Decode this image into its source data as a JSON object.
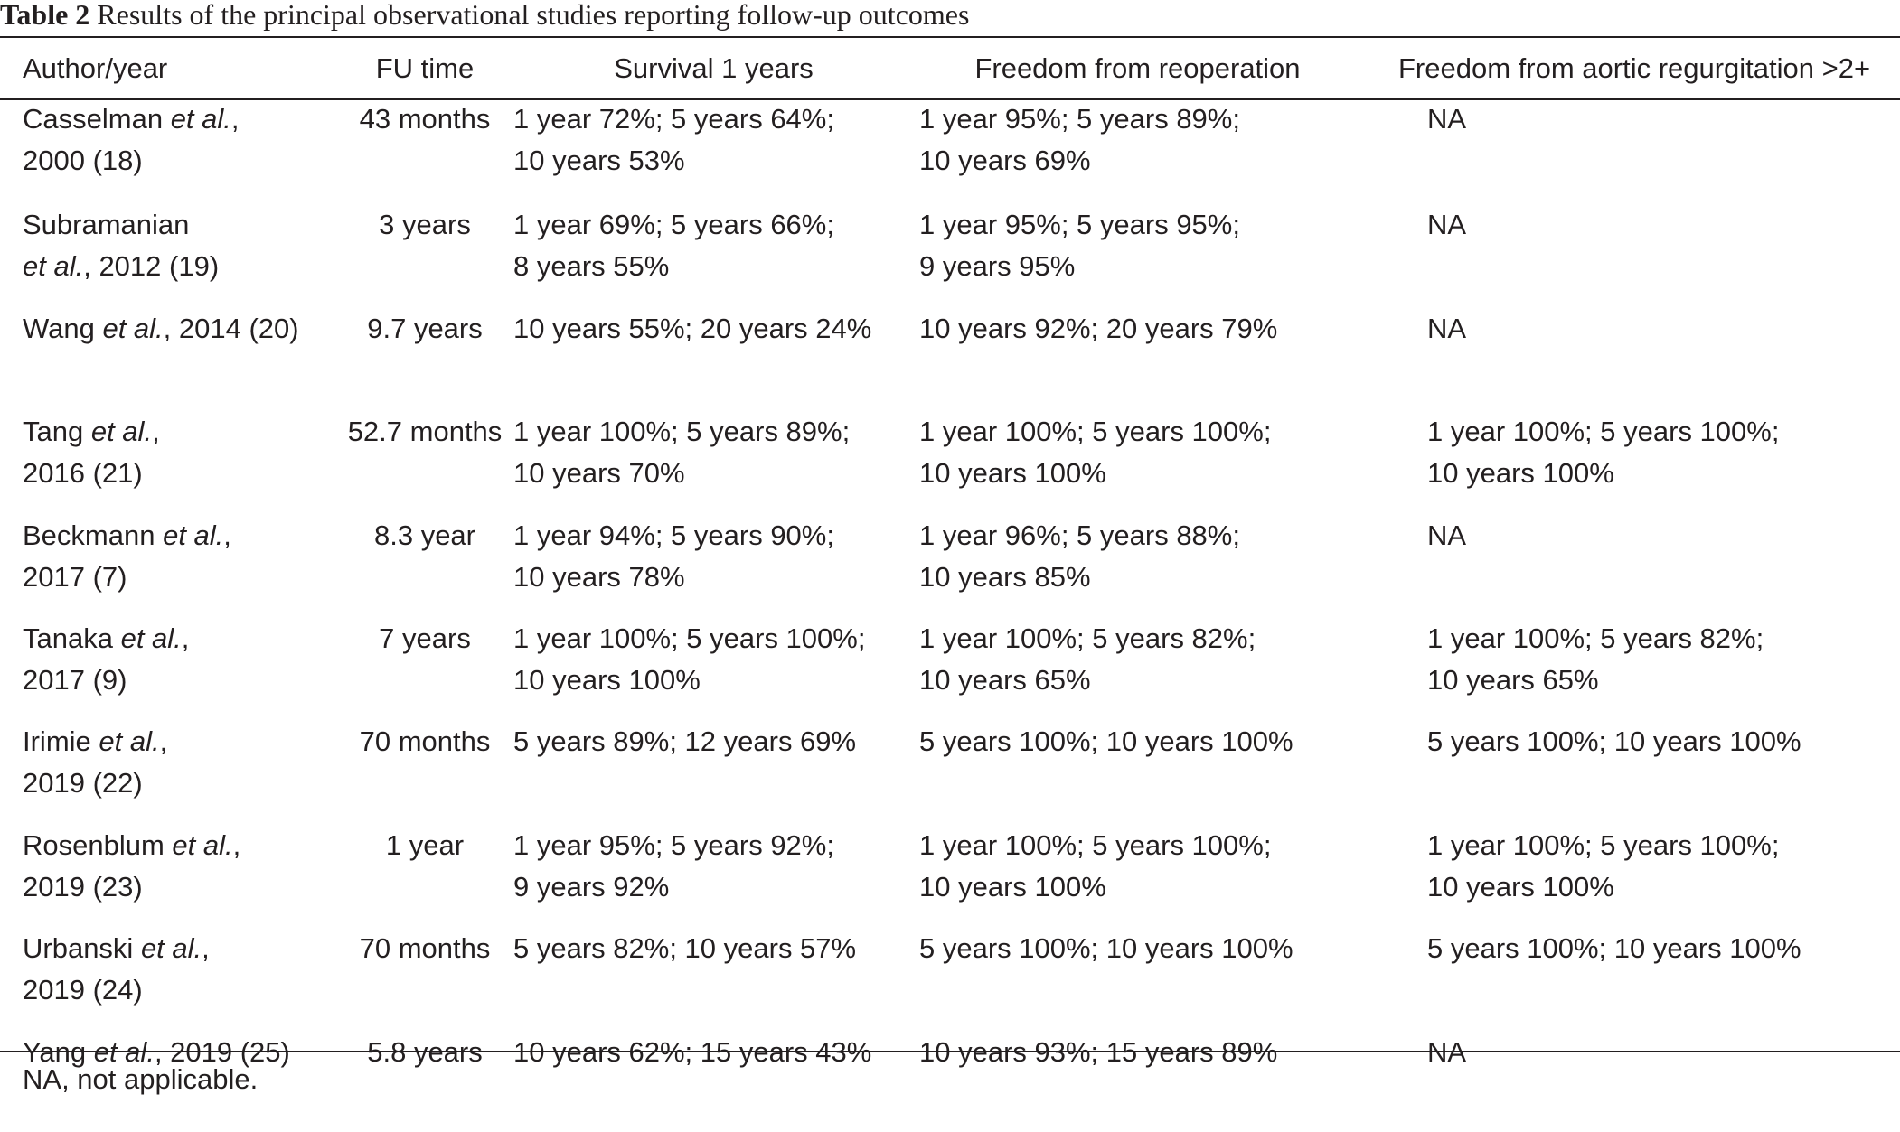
{
  "caption": {
    "label": "Table 2",
    "text": "Results of the principal observational studies reporting follow-up outcomes"
  },
  "table": {
    "headers": [
      "Author/year",
      "FU time",
      "Survival 1 years",
      "Freedom from reoperation",
      "Freedom from aortic regurgitation >2+"
    ],
    "rows": [
      {
        "author": {
          "l1a": "Casselman ",
          "l1i": "et al.",
          "l1b": ",",
          "l2a": "2000 (18)",
          "l2i": "",
          "l2b": ""
        },
        "fu": "43 months",
        "survival": [
          "1 year 72%; 5 years 64%;",
          "10 years 53%"
        ],
        "reoperation": [
          "1 year 95%; 5 years 89%;",
          "10 years 69%"
        ],
        "regurgitation": [
          "NA",
          ""
        ]
      },
      {
        "author": {
          "l1a": "Subramanian",
          "l1i": "",
          "l1b": "",
          "l2a": "",
          "l2i": "et al.",
          "l2b": ", 2012 (19)"
        },
        "fu": "3 years",
        "survival": [
          "1 year 69%; 5 years 66%;",
          "8 years 55%"
        ],
        "reoperation": [
          "1 year 95%; 5 years 95%;",
          "9 years 95%"
        ],
        "regurgitation": [
          "NA",
          ""
        ]
      },
      {
        "author": {
          "l1a": "Wang ",
          "l1i": "et al.",
          "l1b": ", 2014 (20)",
          "l2a": "",
          "l2i": "",
          "l2b": ""
        },
        "fu": "9.7 years",
        "survival": [
          "10 years 55%; 20 years 24%",
          ""
        ],
        "reoperation": [
          "10 years 92%; 20 years 79%",
          ""
        ],
        "regurgitation": [
          "NA",
          ""
        ]
      },
      {
        "author": {
          "l1a": "Tang ",
          "l1i": "et al.",
          "l1b": ",",
          "l2a": "2016 (21)",
          "l2i": "",
          "l2b": ""
        },
        "fu": "52.7 months",
        "survival": [
          "1 year 100%; 5 years 89%;",
          "10 years 70%"
        ],
        "reoperation": [
          "1 year 100%; 5 years 100%;",
          "10 years 100%"
        ],
        "regurgitation": [
          "1 year 100%; 5 years 100%;",
          "10 years 100%"
        ]
      },
      {
        "author": {
          "l1a": "Beckmann ",
          "l1i": "et al.",
          "l1b": ",",
          "l2a": "2017 (7)",
          "l2i": "",
          "l2b": ""
        },
        "fu": "8.3 year",
        "survival": [
          "1 year 94%; 5 years 90%;",
          "10 years 78%"
        ],
        "reoperation": [
          "1 year 96%; 5 years 88%;",
          "10 years 85%"
        ],
        "regurgitation": [
          "NA",
          ""
        ]
      },
      {
        "author": {
          "l1a": "Tanaka ",
          "l1i": "et al.",
          "l1b": ",",
          "l2a": "2017 (9)",
          "l2i": "",
          "l2b": ""
        },
        "fu": "7 years",
        "survival": [
          "1 year 100%; 5 years 100%;",
          "10 years 100%"
        ],
        "reoperation": [
          "1 year 100%; 5 years 82%;",
          "10 years 65%"
        ],
        "regurgitation": [
          "1 year 100%; 5 years 82%;",
          "10 years 65%"
        ]
      },
      {
        "author": {
          "l1a": "Irimie ",
          "l1i": "et al.",
          "l1b": ",",
          "l2a": "2019 (22)",
          "l2i": "",
          "l2b": ""
        },
        "fu": "70 months",
        "survival": [
          "5 years 89%; 12 years 69%",
          ""
        ],
        "reoperation": [
          "5 years 100%; 10 years 100%",
          ""
        ],
        "regurgitation": [
          "5 years 100%; 10 years 100%",
          ""
        ]
      },
      {
        "author": {
          "l1a": "Rosenblum ",
          "l1i": "et al.",
          "l1b": ",",
          "l2a": "2019 (23)",
          "l2i": "",
          "l2b": ""
        },
        "fu": "1 year",
        "survival": [
          "1 year 95%; 5 years 92%;",
          "9 years 92%"
        ],
        "reoperation": [
          "1 year 100%; 5 years 100%;",
          "10 years 100%"
        ],
        "regurgitation": [
          "1 year 100%; 5 years 100%;",
          "10 years 100%"
        ]
      },
      {
        "author": {
          "l1a": "Urbanski ",
          "l1i": "et al.",
          "l1b": ",",
          "l2a": "2019 (24)",
          "l2i": "",
          "l2b": ""
        },
        "fu": "70 months",
        "survival": [
          "5 years 82%; 10 years 57%",
          ""
        ],
        "reoperation": [
          "5 years 100%; 10 years 100%",
          ""
        ],
        "regurgitation": [
          "5 years 100%; 10 years 100%",
          ""
        ]
      },
      {
        "author": {
          "l1a": "Yang ",
          "l1i": "et al.",
          "l1b": ", 2019 (25)",
          "l2a": "",
          "l2i": "",
          "l2b": ""
        },
        "fu": "5.8 years",
        "survival": [
          "10 years 62%; 15 years 43%",
          ""
        ],
        "reoperation": [
          "10 years 93%; 15 years 89%",
          ""
        ],
        "regurgitation": [
          "NA",
          ""
        ]
      }
    ]
  },
  "footnote": "NA, not applicable."
}
